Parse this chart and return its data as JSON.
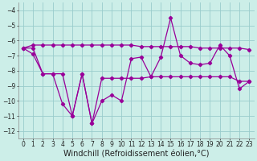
{
  "x": [
    0,
    1,
    2,
    3,
    4,
    5,
    6,
    7,
    8,
    9,
    10,
    11,
    12,
    13,
    14,
    15,
    16,
    17,
    18,
    19,
    20,
    21,
    22,
    23
  ],
  "y_jagged": [
    -6.5,
    -6.9,
    -8.2,
    -8.2,
    -10.2,
    -11.0,
    -8.2,
    -11.5,
    -10.0,
    -9.6,
    -10.0,
    -7.2,
    -7.1,
    -8.4,
    -7.1,
    -4.5,
    -7.0,
    -7.5,
    -7.6,
    -7.5,
    -6.3,
    -7.0,
    -9.2,
    -8.7
  ],
  "y_flat": [
    -6.5,
    -6.3,
    -6.3,
    -6.3,
    -6.3,
    -6.3,
    -6.3,
    -6.3,
    -6.3,
    -6.3,
    -6.3,
    -6.3,
    -6.4,
    -6.4,
    -6.4,
    -6.4,
    -6.4,
    -6.4,
    -6.5,
    -6.5,
    -6.5,
    -6.5,
    -6.5,
    -6.6
  ],
  "y_step": [
    -6.5,
    -6.5,
    -8.2,
    -8.2,
    -8.2,
    -11.0,
    -8.2,
    -11.5,
    -8.5,
    -8.5,
    -8.5,
    -8.5,
    -8.5,
    -8.4,
    -8.4,
    -8.4,
    -8.4,
    -8.4,
    -8.4,
    -8.4,
    -8.4,
    -8.4,
    -8.7,
    -8.7
  ],
  "line_color": "#990099",
  "bg_color": "#cceee8",
  "grid_color": "#99cccc",
  "ylabel_values": [
    -4,
    -5,
    -6,
    -7,
    -8,
    -9,
    -10,
    -11,
    -12
  ],
  "ylim": [
    -12.5,
    -3.5
  ],
  "xlim": [
    -0.5,
    23.5
  ],
  "xlabel": "Windchill (Refroidissement éolien,°C)",
  "xlabel_fontsize": 7.0,
  "tick_fontsize": 5.5
}
